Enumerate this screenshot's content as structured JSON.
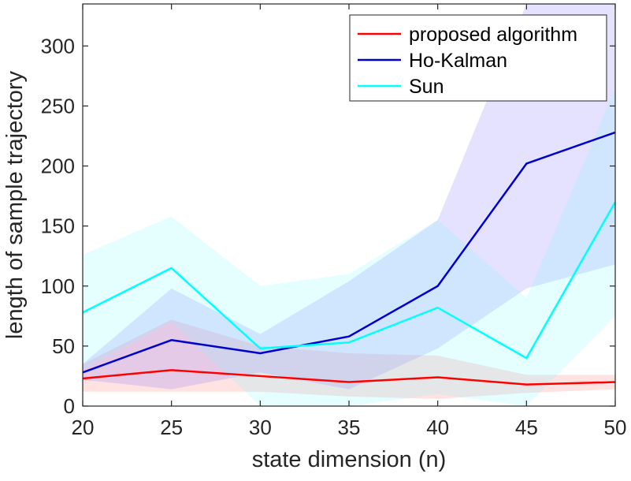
{
  "chart_data": {
    "type": "line",
    "title": "",
    "xlabel": "state dimension (n)",
    "ylabel": "length of sample trajectory",
    "xlim": [
      20,
      50
    ],
    "ylim": [
      0,
      335
    ],
    "xticks": [
      20,
      25,
      30,
      35,
      40,
      45,
      50
    ],
    "yticks": [
      0,
      50,
      100,
      150,
      200,
      250,
      300
    ],
    "x": [
      20,
      25,
      30,
      35,
      40,
      45,
      50
    ],
    "series": [
      {
        "name": "proposed algorithm",
        "color": "#ff0000",
        "values": [
          23,
          30,
          25,
          20,
          24,
          18,
          20
        ],
        "band_lower": [
          12,
          12,
          12,
          8,
          6,
          11,
          14
        ],
        "band_upper": [
          35,
          72,
          50,
          44,
          42,
          26,
          26
        ]
      },
      {
        "name": "Ho-Kalman",
        "color": "#0000cc",
        "values": [
          28,
          55,
          44,
          58,
          100,
          202,
          228
        ],
        "band_lower": [
          22,
          14,
          28,
          14,
          48,
          98,
          118
        ],
        "band_upper": [
          35,
          98,
          60,
          104,
          155,
          335,
          335
        ]
      },
      {
        "name": "Sun",
        "color": "#00ffff",
        "values": [
          78,
          115,
          48,
          53,
          82,
          40,
          170
        ],
        "band_lower": [
          30,
          70,
          0,
          0,
          10,
          0,
          75
        ],
        "band_upper": [
          126,
          158,
          100,
          110,
          155,
          90,
          265
        ]
      }
    ],
    "legend_position": "top-right",
    "grid": false
  }
}
